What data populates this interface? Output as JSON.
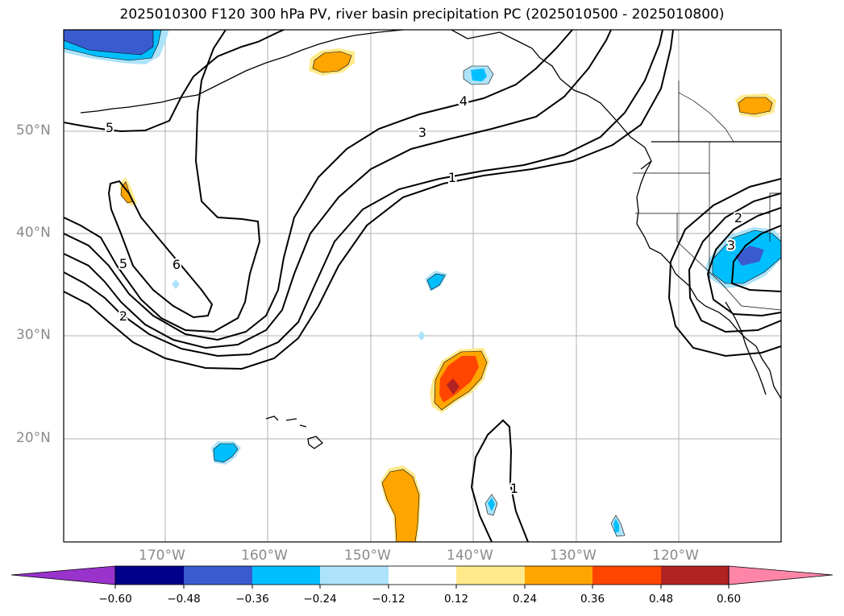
{
  "title": "2025010300 F120 300 hPa PV, river basin precipitation PC (2025010500 - 2025010800)",
  "map": {
    "lat_labels": [
      "50°N",
      "40°N",
      "30°N",
      "20°N"
    ],
    "lon_labels": [
      "170°W",
      "160°W",
      "150°W",
      "140°W",
      "130°W",
      "120°W"
    ],
    "pv_contour_labels": [
      "5",
      "4",
      "3",
      "1",
      "5",
      "6",
      "2",
      "1",
      "2",
      "3"
    ],
    "pv_line_color": "#000000",
    "gridline_color": "#b0b0b0",
    "coastline_color": "#000000"
  },
  "colorbar": {
    "ticks": [
      "−0.60",
      "−0.48",
      "−0.36",
      "−0.24",
      "−0.12",
      "0.12",
      "0.24",
      "0.36",
      "0.48",
      "0.60"
    ],
    "colors": [
      "#9933cc",
      "#00008b",
      "#3a5bd0",
      "#00bfff",
      "#ade3fa",
      "#ffffff",
      "#ffe98a",
      "#ffa500",
      "#ff4500",
      "#b22222",
      "#ff85a8",
      "#ff85a8"
    ]
  }
}
